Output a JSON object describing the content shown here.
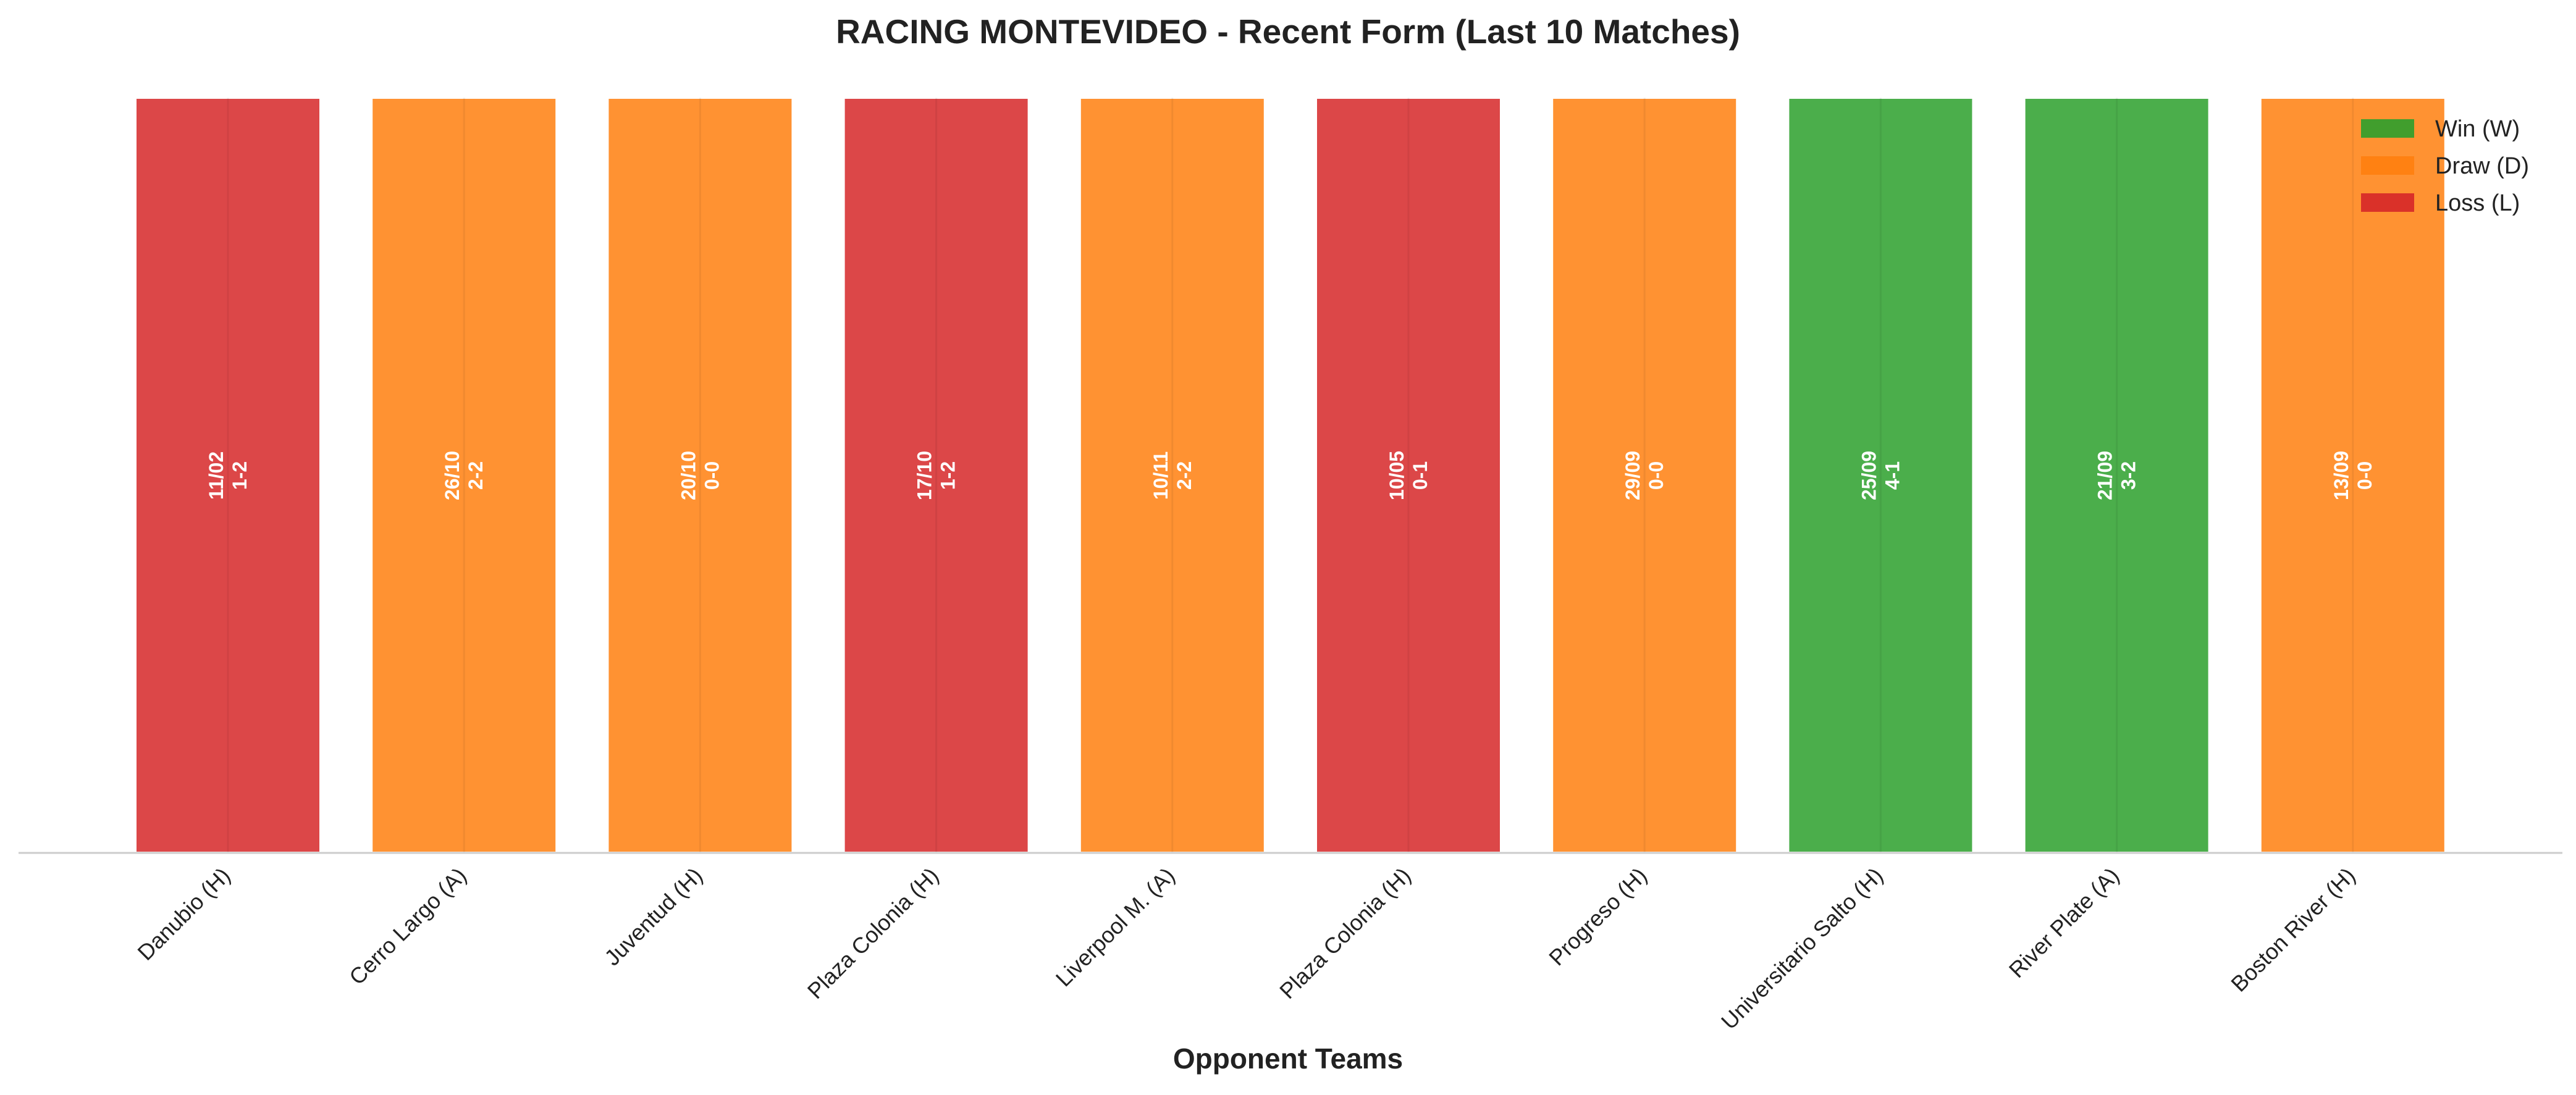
{
  "chart_data": {
    "type": "bar",
    "title": "RACING MONTEVIDEO - Recent Form (Last 10 Matches)",
    "xlabel": "Opponent Teams",
    "ylabel": "",
    "ylim": [
      0,
      1
    ],
    "grid": false,
    "legend_position": "top-right",
    "categories": [
      "Danubio (H)",
      "Cerro Largo (A)",
      "Juventud (H)",
      "Plaza Colonia (H)",
      "Liverpool M. (A)",
      "Plaza Colonia (H)",
      "Progreso (H)",
      "Universitario Salto (H)",
      "River Plate (A)",
      "Boston River (H)"
    ],
    "values": [
      1,
      1,
      1,
      1,
      1,
      1,
      1,
      1,
      1,
      1
    ],
    "results": [
      "L",
      "D",
      "D",
      "L",
      "D",
      "L",
      "D",
      "W",
      "W",
      "D"
    ],
    "dates": [
      "11/02",
      "26/10",
      "20/10",
      "17/10",
      "10/11",
      "10/05",
      "29/09",
      "25/09",
      "21/09",
      "13/09"
    ],
    "scores": [
      "1-2",
      "2-2",
      "0-0",
      "1-2",
      "2-2",
      "0-1",
      "0-0",
      "4-1",
      "3-2",
      "0-0"
    ],
    "legend": [
      {
        "key": "W",
        "label": "Win (W)",
        "color": "#2ca02c"
      },
      {
        "key": "D",
        "label": "Draw (D)",
        "color": "#ff7f0e"
      },
      {
        "key": "L",
        "label": "Loss (L)",
        "color": "#d62728"
      }
    ]
  }
}
